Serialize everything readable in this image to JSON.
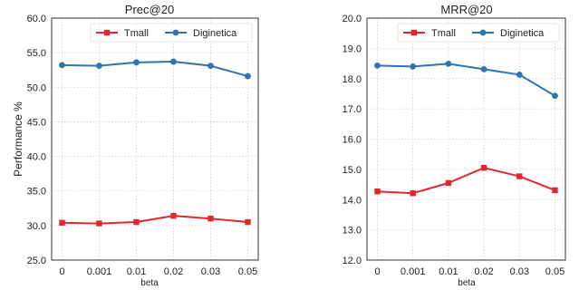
{
  "chart_data": [
    {
      "type": "line",
      "title": "Prec@20",
      "xlabel": "beta",
      "ylabel": "Performance %",
      "categories": [
        "0",
        "0.001",
        "0.01",
        "0.02",
        "0.03",
        "0.05"
      ],
      "ylim": [
        25.0,
        60.0
      ],
      "yticks": [
        "25.0",
        "30.0",
        "35.0",
        "40.0",
        "45.0",
        "50.0",
        "55.0",
        "60.0"
      ],
      "grid": true,
      "legend": "top-right",
      "series": [
        {
          "name": "Tmall",
          "color": "#e3262b",
          "marker": "square",
          "values": [
            30.4,
            30.3,
            30.5,
            31.4,
            31.0,
            30.5
          ]
        },
        {
          "name": "Diginetica",
          "color": "#2f73b0",
          "marker": "circle",
          "values": [
            53.2,
            53.1,
            53.6,
            53.7,
            53.1,
            51.6
          ]
        }
      ]
    },
    {
      "type": "line",
      "title": "MRR@20",
      "xlabel": "beta",
      "ylabel": "",
      "categories": [
        "0",
        "0.001",
        "0.01",
        "0.02",
        "0.03",
        "0.05"
      ],
      "ylim": [
        12.0,
        20.0
      ],
      "yticks": [
        "12.0",
        "13.0",
        "14.0",
        "15.0",
        "16.0",
        "17.0",
        "18.0",
        "19.0",
        "20.0"
      ],
      "grid": true,
      "legend": "top-right",
      "series": [
        {
          "name": "Tmall",
          "color": "#e3262b",
          "marker": "square",
          "values": [
            14.27,
            14.21,
            14.55,
            15.05,
            14.77,
            14.31
          ]
        },
        {
          "name": "Diginetica",
          "color": "#2f73b0",
          "marker": "circle",
          "values": [
            18.43,
            18.4,
            18.49,
            18.31,
            18.13,
            17.43
          ]
        }
      ]
    }
  ]
}
